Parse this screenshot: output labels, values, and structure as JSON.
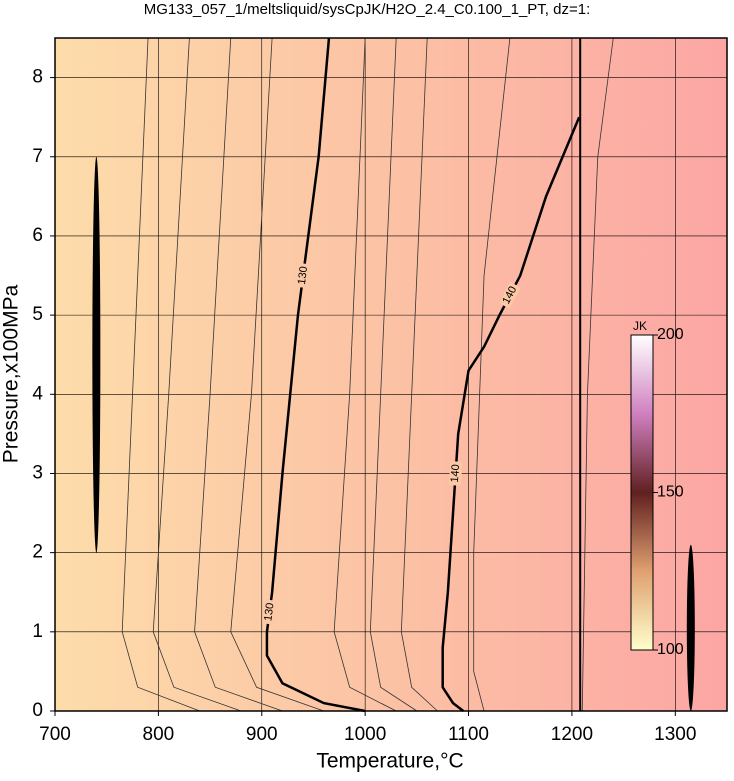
{
  "chart_data": {
    "type": "contour",
    "title": "MG133_057_1/meltsliquid/sysCpJK/H2O_2.4_C0.100_1_PT, dz=1:",
    "x_label": "Temperature,°C",
    "y_label": "Pressure,x100MPa",
    "xlim": [
      700,
      1350
    ],
    "ylim": [
      0,
      8.5
    ],
    "xticks": [
      700,
      800,
      900,
      1000,
      1100,
      1200,
      1300
    ],
    "yticks": [
      0,
      1,
      2,
      3,
      4,
      5,
      6,
      7,
      8
    ],
    "grid": true,
    "contours": [
      {
        "level": 130,
        "x": [
          965,
          955,
          945,
          935,
          920,
          910,
          905,
          905,
          920,
          960,
          1000
        ],
        "y": [
          8.5,
          7,
          6,
          5,
          3,
          1.5,
          1,
          0.7,
          0.35,
          0.1,
          0
        ]
      },
      {
        "level": 140,
        "x": [
          1207,
          1175,
          1150,
          1130,
          1115,
          1100,
          1090,
          1085,
          1080,
          1075,
          1075,
          1085,
          1095
        ],
        "y": [
          7.5,
          6.5,
          5.5,
          5,
          4.6,
          4.3,
          3.5,
          2.5,
          1.5,
          0.8,
          0.3,
          0.1,
          0
        ]
      }
    ],
    "thin_contours": [
      {
        "x": [
          790,
          775,
          765,
          780,
          840
        ],
        "y": [
          8.5,
          4,
          1,
          0.3,
          0
        ]
      },
      {
        "x": [
          830,
          810,
          795,
          815,
          880
        ],
        "y": [
          8.5,
          4,
          1,
          0.3,
          0
        ]
      },
      {
        "x": [
          870,
          850,
          835,
          855,
          920
        ],
        "y": [
          8.5,
          4,
          1,
          0.3,
          0
        ]
      },
      {
        "x": [
          910,
          890,
          870,
          895,
          960
        ],
        "y": [
          8.5,
          4,
          1,
          0.3,
          0
        ]
      },
      {
        "x": [
          1000,
          985,
          970,
          985,
          1030
        ],
        "y": [
          8.5,
          4,
          1,
          0.3,
          0
        ]
      },
      {
        "x": [
          1030,
          1015,
          1005,
          1015,
          1050
        ],
        "y": [
          8.5,
          4,
          1,
          0.3,
          0
        ]
      },
      {
        "x": [
          1060,
          1045,
          1035,
          1045,
          1070
        ],
        "y": [
          8.5,
          4,
          1,
          0.3,
          0
        ]
      },
      {
        "x": [
          1140,
          1115,
          1105,
          1105,
          1115
        ],
        "y": [
          8.5,
          5.5,
          2,
          0.5,
          0
        ]
      },
      {
        "x": [
          1240,
          1225,
          1215,
          1210
        ],
        "y": [
          8.5,
          7,
          4,
          0
        ]
      }
    ],
    "boundary_x": 1208,
    "spikes": [
      {
        "x": 740,
        "y": [
          2,
          7
        ]
      },
      {
        "x": 1315,
        "y": [
          0,
          2.1
        ]
      }
    ],
    "colorbar": {
      "label": "JK",
      "lim": [
        100,
        200
      ],
      "ticks": [
        100,
        150,
        200
      ],
      "colors": [
        "#ffffcc",
        "#e0a070",
        "#602020",
        "#d080c0",
        "#ffffff"
      ]
    }
  }
}
